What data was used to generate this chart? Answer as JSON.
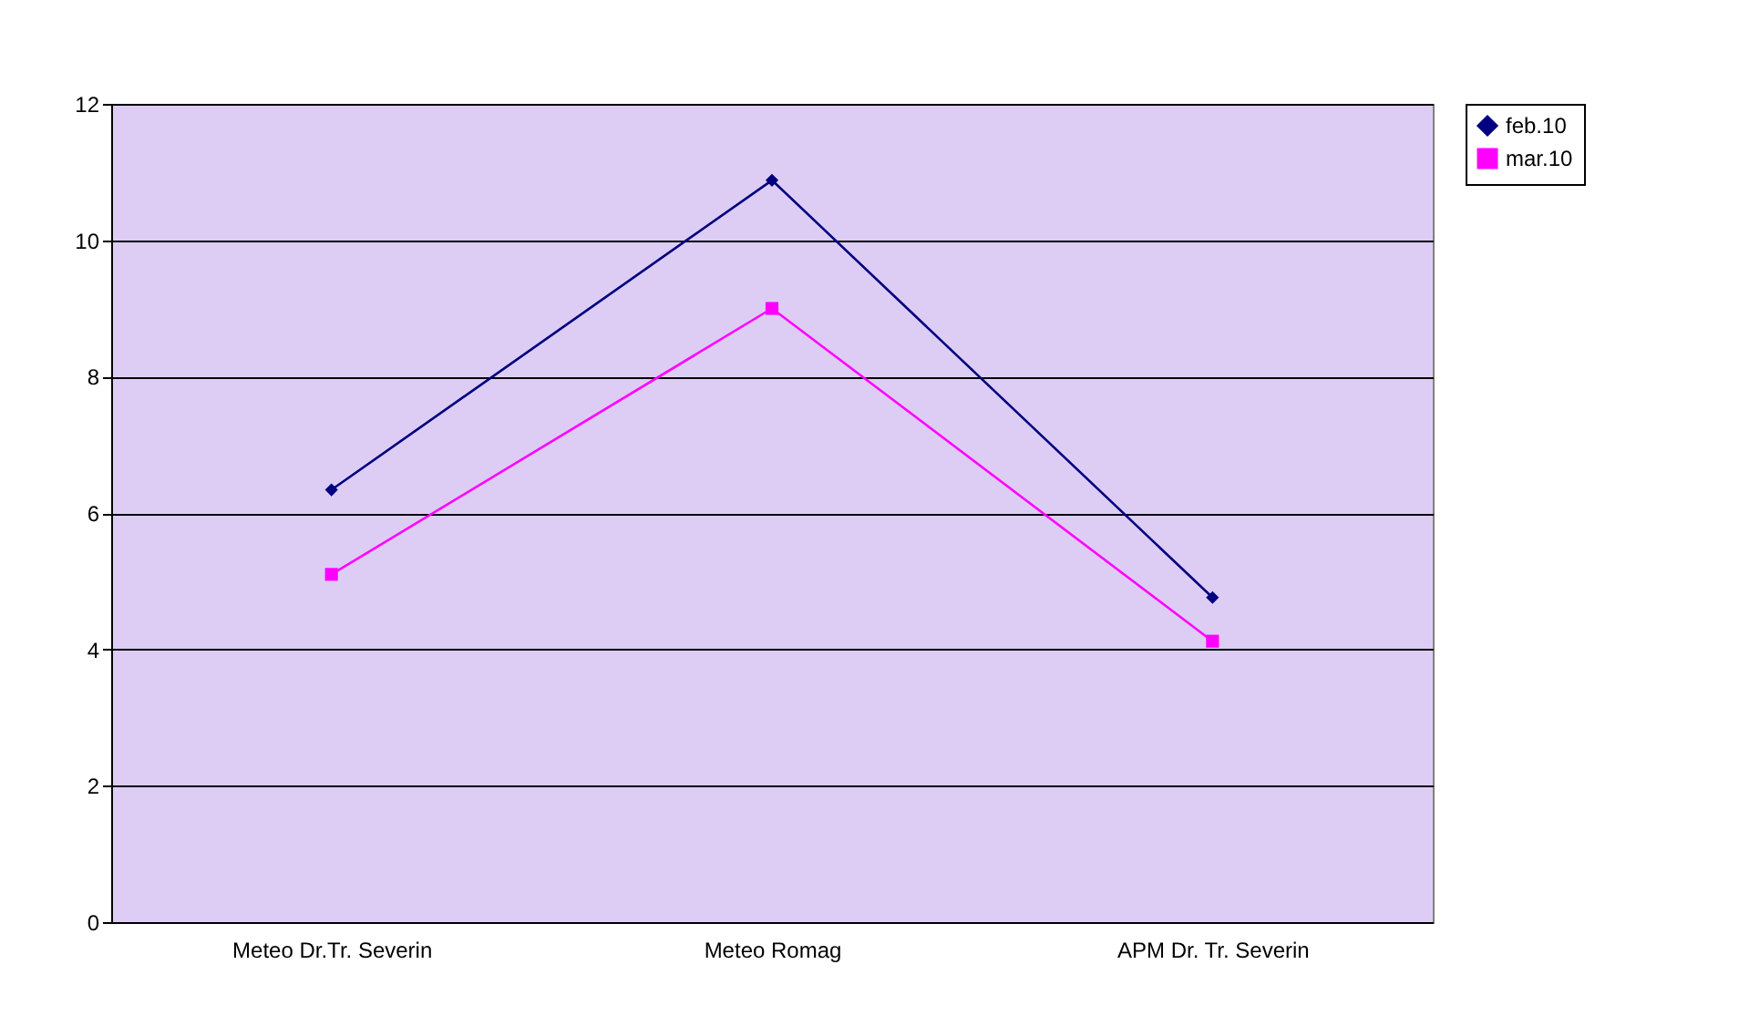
{
  "chart_data": {
    "type": "line",
    "categories": [
      "Meteo Dr.Tr. Severin",
      "Meteo  Romag",
      "APM Dr. Tr. Severin"
    ],
    "series": [
      {
        "name": "feb.10",
        "color": "#000080",
        "values": [
          6.34,
          10.88,
          4.76
        ],
        "marker": "diamond"
      },
      {
        "name": "mar.10",
        "color": "#ff00ff",
        "values": [
          5.1,
          9.0,
          4.12
        ],
        "marker": "square"
      }
    ],
    "ylim": [
      0,
      12
    ],
    "yticks": [
      0,
      2,
      4,
      6,
      8,
      10,
      12
    ],
    "grid": "y",
    "legend": "right"
  }
}
